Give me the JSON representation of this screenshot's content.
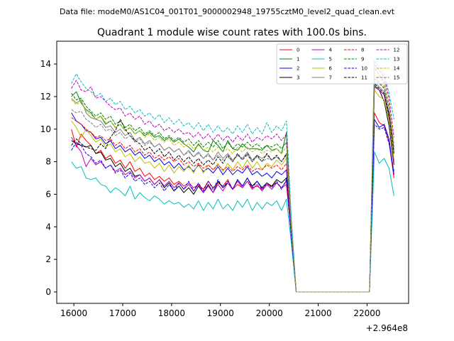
{
  "figure": {
    "suptitle": "Data file: modeM0/AS1C04_001T01_9000002948_19755cztM0_level2_quad_clean.evt"
  },
  "chart_data": {
    "type": "line",
    "title": "Quadrant 1 module wise count rates with 100.0s bins.",
    "xlabel": "",
    "ylabel": "",
    "x_offset_label": "+2.964e8",
    "xlim": [
      15650,
      22850
    ],
    "ylim": [
      -0.7,
      15.4
    ],
    "xticks": [
      16000,
      17000,
      18000,
      19000,
      20000,
      21000,
      22000
    ],
    "yticks": [
      0,
      2,
      4,
      6,
      8,
      10,
      12,
      14
    ],
    "grid": false,
    "legend_position": "top-right",
    "legend_columns": 4,
    "x": [
      15950,
      16050,
      16150,
      16250,
      16350,
      16450,
      16550,
      16650,
      16750,
      16850,
      16950,
      17050,
      17150,
      17250,
      17350,
      17450,
      17550,
      17650,
      17750,
      17850,
      17950,
      18050,
      18150,
      18250,
      18350,
      18450,
      18550,
      18650,
      18750,
      18850,
      18950,
      19050,
      19150,
      19250,
      19350,
      19450,
      19550,
      19650,
      19750,
      19850,
      19950,
      20050,
      20150,
      20250,
      20350,
      20450,
      20550,
      20650,
      20750,
      20850,
      20950,
      21050,
      21150,
      21250,
      21350,
      21450,
      21550,
      21650,
      21750,
      21850,
      21950,
      22050,
      22150,
      22250,
      22350,
      22450,
      22550
    ],
    "series": [
      {
        "name": "0",
        "color": "#ff0000",
        "dash": "solid",
        "values": [
          10.0,
          8.9,
          9.7,
          9.3,
          9.0,
          8.5,
          8.7,
          8.2,
          8.4,
          7.9,
          8.1,
          7.6,
          8.0,
          7.4,
          7.6,
          7.1,
          7.3,
          6.9,
          7.1,
          6.8,
          7.0,
          6.6,
          6.8,
          6.5,
          6.7,
          6.4,
          6.6,
          6.3,
          6.8,
          6.4,
          6.7,
          6.5,
          6.9,
          6.3,
          6.6,
          6.4,
          6.8,
          6.4,
          6.5,
          6.3,
          6.6,
          6.5,
          6.7,
          6.4,
          6.6,
          3.5,
          0.0,
          0.0,
          0.0,
          0.0,
          0.0,
          0.0,
          0.0,
          0.0,
          0.0,
          0.0,
          0.0,
          0.0,
          0.0,
          0.0,
          0.0,
          0.0,
          11.0,
          10.4,
          10.2,
          9.2,
          7.0
        ]
      },
      {
        "name": "1",
        "color": "#008000",
        "dash": "solid",
        "values": [
          12.0,
          12.3,
          11.6,
          11.2,
          11.0,
          10.6,
          10.8,
          10.3,
          10.5,
          10.1,
          10.3,
          9.9,
          10.1,
          9.7,
          9.9,
          9.6,
          9.8,
          9.5,
          9.6,
          9.3,
          9.5,
          9.2,
          9.4,
          9.1,
          8.9,
          8.6,
          9.1,
          8.7,
          8.6,
          9.3,
          9.0,
          8.6,
          9.3,
          8.8,
          8.7,
          9.1,
          8.8,
          8.8,
          8.8,
          8.7,
          9.0,
          8.7,
          8.8,
          8.5,
          9.8,
          4.0,
          0.0,
          0.0,
          0.0,
          0.0,
          0.0,
          0.0,
          0.0,
          0.0,
          0.0,
          0.0,
          0.0,
          0.0,
          0.0,
          0.0,
          0.0,
          0.0,
          12.7,
          12.4,
          12.1,
          10.7,
          8.7
        ]
      },
      {
        "name": "2",
        "color": "#0000ff",
        "dash": "solid",
        "values": [
          11.0,
          10.5,
          10.3,
          9.9,
          9.8,
          9.4,
          9.5,
          9.1,
          9.3,
          8.8,
          9.0,
          8.6,
          8.8,
          8.4,
          8.6,
          8.2,
          8.4,
          8.0,
          8.2,
          7.8,
          8.0,
          7.6,
          7.9,
          7.5,
          7.7,
          7.4,
          7.8,
          7.4,
          7.6,
          7.3,
          7.7,
          7.2,
          7.6,
          7.2,
          7.5,
          7.3,
          7.7,
          7.2,
          7.4,
          7.1,
          7.3,
          7.0,
          7.4,
          7.2,
          7.5,
          3.5,
          0.0,
          0.0,
          0.0,
          0.0,
          0.0,
          0.0,
          0.0,
          0.0,
          0.0,
          0.0,
          0.0,
          0.0,
          0.0,
          0.0,
          0.0,
          0.0,
          10.6,
          10.1,
          10.3,
          9.4,
          7.2
        ]
      },
      {
        "name": "3",
        "color": "#000000",
        "dash": "solid",
        "values": [
          9.3,
          9.1,
          9.0,
          8.9,
          9.0,
          8.5,
          8.6,
          8.1,
          8.2,
          7.7,
          7.9,
          7.4,
          7.6,
          7.1,
          7.2,
          6.8,
          7.0,
          6.6,
          6.9,
          6.4,
          6.7,
          6.2,
          6.5,
          6.1,
          6.4,
          6.0,
          6.5,
          6.1,
          6.6,
          6.1,
          6.8,
          6.4,
          6.7,
          6.3,
          6.9,
          6.5,
          7.0,
          6.5,
          6.8,
          6.4,
          6.7,
          6.5,
          6.9,
          6.7,
          7.0,
          3.5,
          0.0,
          0.0,
          0.0,
          0.0,
          0.0,
          0.0,
          0.0,
          0.0,
          0.0,
          0.0,
          0.0,
          0.0,
          0.0,
          0.0,
          0.0,
          0.0,
          12.6,
          12.4,
          11.7,
          10.2,
          7.8
        ]
      },
      {
        "name": "4",
        "color": "#bf00bf",
        "dash": "solid",
        "values": [
          9.5,
          9.0,
          8.6,
          7.7,
          8.2,
          7.8,
          8.0,
          7.6,
          7.8,
          7.4,
          7.6,
          7.2,
          7.4,
          7.0,
          7.2,
          6.8,
          7.0,
          6.6,
          6.9,
          6.5,
          6.8,
          6.4,
          6.7,
          6.3,
          6.6,
          6.2,
          6.6,
          6.1,
          6.5,
          6.1,
          6.6,
          6.2,
          6.7,
          6.3,
          6.8,
          6.4,
          6.8,
          6.3,
          6.6,
          6.2,
          6.6,
          6.3,
          6.7,
          6.4,
          6.8,
          3.6,
          0.0,
          0.0,
          0.0,
          0.0,
          0.0,
          0.0,
          0.0,
          0.0,
          0.0,
          0.0,
          0.0,
          0.0,
          0.0,
          0.0,
          0.0,
          0.0,
          12.6,
          12.4,
          12.1,
          10.8,
          8.0
        ]
      },
      {
        "name": "5",
        "color": "#00bfbf",
        "dash": "solid",
        "values": [
          8.0,
          7.6,
          7.7,
          7.0,
          6.9,
          7.0,
          6.6,
          6.5,
          6.1,
          6.4,
          6.2,
          5.9,
          6.5,
          5.7,
          6.1,
          5.8,
          5.6,
          5.9,
          5.7,
          5.4,
          5.6,
          5.4,
          5.5,
          5.2,
          5.4,
          5.1,
          5.6,
          5.0,
          5.5,
          5.1,
          5.7,
          5.1,
          5.4,
          5.0,
          5.6,
          5.2,
          5.7,
          5.0,
          5.5,
          5.1,
          5.5,
          5.3,
          5.6,
          5.0,
          5.7,
          3.0,
          0.0,
          0.0,
          0.0,
          0.0,
          0.0,
          0.0,
          0.0,
          0.0,
          0.0,
          0.0,
          0.0,
          0.0,
          0.0,
          0.0,
          0.0,
          0.0,
          8.6,
          7.9,
          8.2,
          7.6,
          5.9
        ]
      },
      {
        "name": "6",
        "color": "#bfbf00",
        "dash": "solid",
        "values": [
          10.5,
          10.1,
          9.5,
          10.0,
          9.6,
          9.2,
          9.4,
          8.9,
          9.1,
          8.6,
          8.8,
          8.3,
          8.5,
          8.0,
          8.3,
          7.9,
          8.0,
          7.6,
          7.9,
          7.4,
          7.8,
          7.3,
          7.7,
          7.4,
          7.8,
          7.3,
          7.9,
          7.3,
          7.8,
          7.5,
          7.9,
          7.4,
          7.9,
          7.5,
          8.0,
          7.6,
          8.1,
          7.6,
          8.0,
          7.5,
          7.9,
          7.7,
          8.1,
          7.8,
          8.2,
          3.8,
          0.0,
          0.0,
          0.0,
          0.0,
          0.0,
          0.0,
          0.0,
          0.0,
          0.0,
          0.0,
          0.0,
          0.0,
          0.0,
          0.0,
          0.0,
          0.0,
          12.4,
          12.0,
          11.8,
          10.5,
          8.2
        ]
      },
      {
        "name": "7",
        "color": "#808080",
        "dash": "solid",
        "values": [
          11.9,
          11.6,
          11.8,
          11.0,
          10.7,
          10.6,
          10.5,
          10.1,
          10.2,
          9.8,
          10.0,
          9.6,
          9.8,
          9.3,
          9.5,
          9.1,
          9.3,
          8.9,
          9.1,
          8.7,
          8.9,
          8.6,
          8.8,
          8.4,
          8.7,
          8.3,
          8.6,
          8.2,
          8.5,
          8.1,
          8.6,
          8.2,
          8.5,
          8.1,
          8.4,
          8.2,
          8.6,
          8.1,
          8.4,
          8.2,
          8.4,
          8.1,
          8.3,
          8.0,
          8.4,
          4.0,
          0.0,
          0.0,
          0.0,
          0.0,
          0.0,
          0.0,
          0.0,
          0.0,
          0.0,
          0.0,
          0.0,
          0.0,
          0.0,
          0.0,
          0.0,
          0.0,
          12.9,
          12.6,
          12.3,
          11.0,
          8.6
        ]
      },
      {
        "name": "8",
        "color": "#ff0000",
        "dash": "dashed",
        "values": [
          10.7,
          10.5,
          10.3,
          10.0,
          9.8,
          9.5,
          9.6,
          9.3,
          9.4,
          9.0,
          9.2,
          8.8,
          9.0,
          8.6,
          8.8,
          8.4,
          8.6,
          8.2,
          8.4,
          8.1,
          8.3,
          8.0,
          8.2,
          7.8,
          8.0,
          7.7,
          7.9,
          7.6,
          7.8,
          7.5,
          7.8,
          7.5,
          7.7,
          7.4,
          7.7,
          7.5,
          7.8,
          7.4,
          7.6,
          7.5,
          7.8,
          7.6,
          7.8,
          7.5,
          7.9,
          3.7,
          0.0,
          0.0,
          0.0,
          0.0,
          0.0,
          0.0,
          0.0,
          0.0,
          0.0,
          0.0,
          0.0,
          0.0,
          0.0,
          0.0,
          0.0,
          0.0,
          13.8,
          13.3,
          12.9,
          11.5,
          8.8
        ]
      },
      {
        "name": "9",
        "color": "#008000",
        "dash": "dashed",
        "values": [
          12.2,
          11.8,
          11.9,
          11.4,
          11.1,
          10.8,
          11.0,
          10.6,
          10.8,
          10.3,
          10.5,
          10.1,
          10.3,
          9.9,
          10.1,
          9.7,
          9.9,
          9.6,
          9.8,
          9.4,
          9.6,
          9.3,
          9.5,
          9.2,
          9.4,
          9.0,
          9.3,
          8.9,
          9.2,
          8.9,
          9.3,
          8.8,
          9.2,
          8.8,
          9.1,
          8.9,
          9.2,
          8.9,
          9.1,
          8.8,
          9.0,
          8.9,
          9.1,
          8.8,
          9.2,
          4.2,
          0.0,
          0.0,
          0.0,
          0.0,
          0.0,
          0.0,
          0.0,
          0.0,
          0.0,
          0.0,
          0.0,
          0.0,
          0.0,
          0.0,
          0.0,
          0.0,
          13.1,
          12.8,
          12.5,
          11.3,
          8.9
        ]
      },
      {
        "name": "10",
        "color": "#0000ff",
        "dash": "dashed",
        "values": [
          8.7,
          9.2,
          9.0,
          8.5,
          8.3,
          7.9,
          8.1,
          7.6,
          7.8,
          7.3,
          7.5,
          7.0,
          7.3,
          6.8,
          7.0,
          6.6,
          6.8,
          6.4,
          6.7,
          6.2,
          6.6,
          6.2,
          6.7,
          6.3,
          6.8,
          6.2,
          6.7,
          6.2,
          6.8,
          6.3,
          6.9,
          6.4,
          6.8,
          6.3,
          6.9,
          6.5,
          7.0,
          6.4,
          6.8,
          6.3,
          6.7,
          6.4,
          6.8,
          6.3,
          6.9,
          3.4,
          0.0,
          0.0,
          0.0,
          0.0,
          0.0,
          0.0,
          0.0,
          0.0,
          0.0,
          0.0,
          0.0,
          0.0,
          0.0,
          0.0,
          0.0,
          0.0,
          10.3,
          10.0,
          10.1,
          9.1,
          7.4
        ]
      },
      {
        "name": "11",
        "color": "#000000",
        "dash": "dashed",
        "values": [
          9.0,
          9.4,
          9.1,
          8.9,
          8.8,
          8.7,
          9.1,
          8.8,
          9.5,
          9.9,
          10.6,
          10.0,
          9.6,
          9.3,
          9.1,
          8.7,
          8.9,
          8.5,
          8.8,
          8.3,
          8.6,
          8.1,
          8.4,
          8.0,
          8.3,
          7.9,
          8.2,
          7.8,
          8.1,
          7.8,
          8.3,
          7.9,
          8.4,
          8.0,
          8.5,
          8.1,
          8.5,
          8.0,
          8.4,
          8.0,
          8.5,
          8.1,
          8.4,
          8.0,
          8.5,
          4.0,
          0.0,
          0.0,
          0.0,
          0.0,
          0.0,
          0.0,
          0.0,
          0.0,
          0.0,
          0.0,
          0.0,
          0.0,
          0.0,
          0.0,
          0.0,
          0.0,
          12.8,
          12.5,
          12.2,
          10.9,
          8.5
        ]
      },
      {
        "name": "12",
        "color": "#bf00bf",
        "dash": "dashed",
        "values": [
          12.5,
          13.0,
          12.4,
          12.3,
          12.6,
          11.9,
          12.0,
          11.7,
          11.4,
          11.2,
          11.3,
          10.8,
          11.0,
          10.6,
          10.8,
          10.3,
          10.5,
          10.1,
          10.3,
          9.9,
          10.1,
          9.8,
          10.0,
          9.7,
          9.8,
          9.5,
          9.8,
          9.4,
          9.7,
          9.3,
          9.7,
          9.3,
          9.6,
          9.2,
          9.6,
          9.3,
          9.7,
          9.2,
          9.5,
          9.3,
          9.6,
          9.4,
          9.7,
          9.3,
          9.7,
          4.4,
          0.0,
          0.0,
          0.0,
          0.0,
          0.0,
          0.0,
          0.0,
          0.0,
          0.0,
          0.0,
          0.0,
          0.0,
          0.0,
          0.0,
          0.0,
          0.0,
          14.0,
          13.6,
          13.2,
          11.9,
          9.5
        ]
      },
      {
        "name": "13",
        "color": "#00bfbf",
        "dash": "dashed",
        "values": [
          12.8,
          13.4,
          12.9,
          12.5,
          12.3,
          12.0,
          12.2,
          11.7,
          11.9,
          11.5,
          11.7,
          11.2,
          11.4,
          11.0,
          11.2,
          10.8,
          11.0,
          10.6,
          10.9,
          10.4,
          10.7,
          10.3,
          10.6,
          10.2,
          10.4,
          10.0,
          10.4,
          9.9,
          10.3,
          9.8,
          10.2,
          9.8,
          10.1,
          9.7,
          10.2,
          9.8,
          10.3,
          9.7,
          10.1,
          9.7,
          10.4,
          9.8,
          10.2,
          9.9,
          10.5,
          4.6,
          0.0,
          0.0,
          0.0,
          0.0,
          0.0,
          0.0,
          0.0,
          0.0,
          0.0,
          0.0,
          0.0,
          0.0,
          0.0,
          0.0,
          0.0,
          0.0,
          14.2,
          13.8,
          13.4,
          12.2,
          10.6
        ]
      },
      {
        "name": "14",
        "color": "#bfbf00",
        "dash": "dashed",
        "values": [
          11.8,
          11.5,
          11.7,
          11.1,
          10.9,
          10.6,
          10.8,
          10.4,
          10.5,
          10.1,
          10.3,
          9.9,
          10.1,
          9.7,
          9.9,
          9.5,
          9.7,
          9.3,
          9.5,
          9.2,
          9.4,
          9.0,
          9.2,
          8.9,
          9.1,
          8.8,
          9.0,
          8.7,
          8.9,
          8.6,
          8.9,
          8.6,
          8.8,
          8.5,
          8.9,
          8.6,
          8.9,
          8.6,
          8.8,
          8.5,
          8.7,
          8.6,
          8.8,
          8.5,
          8.9,
          4.1,
          0.0,
          0.0,
          0.0,
          0.0,
          0.0,
          0.0,
          0.0,
          0.0,
          0.0,
          0.0,
          0.0,
          0.0,
          0.0,
          0.0,
          0.0,
          0.0,
          13.5,
          13.1,
          12.8,
          11.5,
          9.1
        ]
      },
      {
        "name": "15",
        "color": "#808080",
        "dash": "dashed",
        "values": [
          11.2,
          11.0,
          11.1,
          10.6,
          10.4,
          10.1,
          10.3,
          9.9,
          10.0,
          9.6,
          9.8,
          9.4,
          9.6,
          9.2,
          9.4,
          9.0,
          9.2,
          8.9,
          9.1,
          8.7,
          8.9,
          8.6,
          8.8,
          8.4,
          8.6,
          8.3,
          8.5,
          8.2,
          8.4,
          8.1,
          8.4,
          8.1,
          8.3,
          8.0,
          8.4,
          8.1,
          8.4,
          8.0,
          8.3,
          8.0,
          8.2,
          8.1,
          8.3,
          8.0,
          8.4,
          3.9,
          0.0,
          0.0,
          0.0,
          0.0,
          0.0,
          0.0,
          0.0,
          0.0,
          0.0,
          0.0,
          0.0,
          0.0,
          0.0,
          0.0,
          0.0,
          0.0,
          13.3,
          12.9,
          12.6,
          11.3,
          8.9
        ]
      }
    ]
  }
}
